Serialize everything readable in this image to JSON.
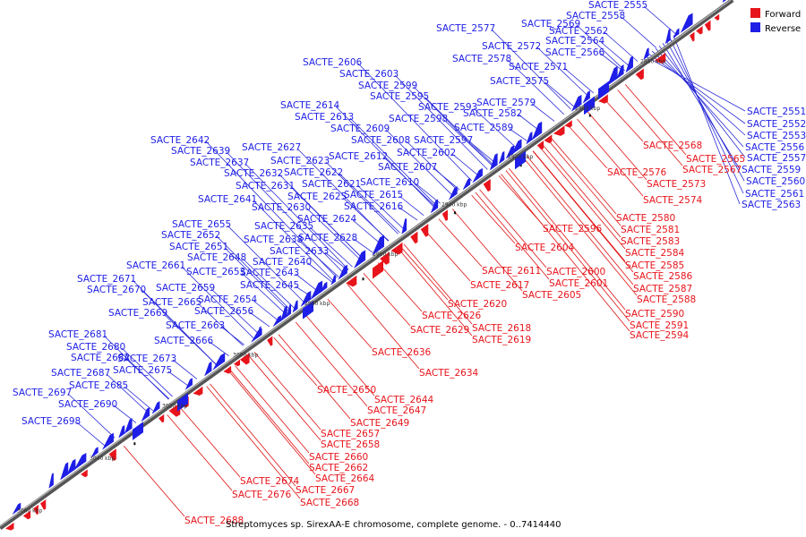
{
  "caption": "Streptomyces sp. SirexAA-E chromosome, complete genome. - 0..7414440",
  "legend": {
    "forward_label": "Forward",
    "reverse_label": "Reverse"
  },
  "colors": {
    "forward": "#e8141b",
    "reverse": "#1e1ee6",
    "backbone": "#7f7f7f",
    "forward_line": "#e01010",
    "reverse_line": "#2a2ad8"
  },
  "ticks": [
    "2880 kbp",
    "2900 kbp",
    "2920 kbp",
    "2940 kbp",
    "2960 kbp",
    "2980 kbp",
    "3000 kbp",
    "3020 kbp",
    "3040 kbp",
    "3060 kbp"
  ],
  "reverse_labels": [
    "SACTE_2555",
    "SACTE_2558",
    "SACTE_2569",
    "SACTE_2577",
    "SACTE_2562",
    "SACTE_2564",
    "SACTE_2572",
    "SACTE_2566",
    "SACTE_2578",
    "SACTE_2571",
    "SACTE_2575",
    "SACTE_2606",
    "SACTE_2603",
    "SACTE_2599",
    "SACTE_2595",
    "SACTE_2593",
    "SACTE_2579",
    "SACTE_2614",
    "SACTE_2598",
    "SACTE_2582",
    "SACTE_2613",
    "SACTE_2609",
    "SACTE_2589",
    "SACTE_2608",
    "SACTE_2597",
    "SACTE_2642",
    "SACTE_2627",
    "SACTE_2602",
    "SACTE_2639",
    "SACTE_2612",
    "SACTE_2623",
    "SACTE_2637",
    "SACTE_2607",
    "SACTE_2632",
    "SACTE_2622",
    "SACTE_2621",
    "SACTE_2610",
    "SACTE_2631",
    "SACTE_2625",
    "SACTE_2615",
    "SACTE_2641",
    "SACTE_2630",
    "SACTE_2616",
    "SACTE_2624",
    "SACTE_2655",
    "SACTE_2635",
    "SACTE_2652",
    "SACTE_2638",
    "SACTE_2628",
    "SACTE_2651",
    "SACTE_2633",
    "SACTE_2648",
    "SACTE_2661",
    "SACTE_2640",
    "SACTE_2653",
    "SACTE_2643",
    "SACTE_2671",
    "SACTE_2645",
    "SACTE_2670",
    "SACTE_2659",
    "SACTE_2665",
    "SACTE_2654",
    "SACTE_2669",
    "SACTE_2656",
    "SACTE_2663",
    "SACTE_2681",
    "SACTE_2666",
    "SACTE_2680",
    "SACTE_2682",
    "SACTE_2673",
    "SACTE_2687",
    "SACTE_2675",
    "SACTE_2685",
    "SACTE_2697",
    "SACTE_2690",
    "SACTE_2698",
    "SACTE_2551",
    "SACTE_2552",
    "SACTE_2553",
    "SACTE_2556",
    "SACTE_2557",
    "SACTE_2559",
    "SACTE_2560",
    "SACTE_2561",
    "SACTE_2563"
  ],
  "forward_labels": [
    "SACTE_2568",
    "SACTE_2565",
    "SACTE_2567",
    "SACTE_2576",
    "SACTE_2573",
    "SACTE_2574",
    "SACTE_2580",
    "SACTE_2581",
    "SACTE_2583",
    "SACTE_2584",
    "SACTE_2585",
    "SACTE_2586",
    "SACTE_2587",
    "SACTE_2588",
    "SACTE_2590",
    "SACTE_2591",
    "SACTE_2594",
    "SACTE_2596",
    "SACTE_2604",
    "SACTE_2611",
    "SACTE_2600",
    "SACTE_2617",
    "SACTE_2601",
    "SACTE_2605",
    "SACTE_2620",
    "SACTE_2626",
    "SACTE_2629",
    "SACTE_2618",
    "SACTE_2619",
    "SACTE_2636",
    "SACTE_2634",
    "SACTE_2650",
    "SACTE_2644",
    "SACTE_2647",
    "SACTE_2649",
    "SACTE_2657",
    "SACTE_2658",
    "SACTE_2660",
    "SACTE_2662",
    "SACTE_2664",
    "SACTE_2674",
    "SACTE_2667",
    "SACTE_2676",
    "SACTE_2668",
    "SACTE_2688"
  ]
}
